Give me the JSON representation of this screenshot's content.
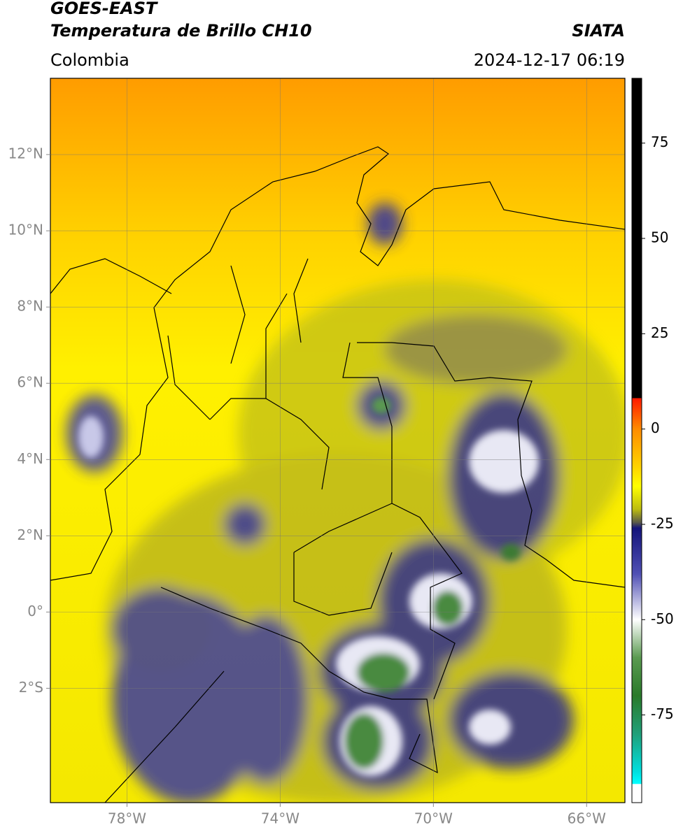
{
  "header": {
    "source": "GOES-EAST",
    "product": "Temperatura de Brillo CH10",
    "agency": "SIATA",
    "region": "Colombia",
    "datetime": "2024-12-17 06:19"
  },
  "map": {
    "xlim": [
      -80,
      -65
    ],
    "ylim": [
      -5,
      14
    ],
    "grid": true,
    "xticks": [
      {
        "value": -78,
        "label": "78°W"
      },
      {
        "value": -74,
        "label": "74°W"
      },
      {
        "value": -70,
        "label": "70°W"
      },
      {
        "value": -66,
        "label": "66°W"
      }
    ],
    "yticks": [
      {
        "value": 12,
        "label": "12°N"
      },
      {
        "value": 10,
        "label": "10°N"
      },
      {
        "value": 8,
        "label": "8°N"
      },
      {
        "value": 6,
        "label": "6°N"
      },
      {
        "value": 4,
        "label": "4°N"
      },
      {
        "value": 2,
        "label": "2°N"
      },
      {
        "value": 0,
        "label": "0°"
      },
      {
        "value": -2,
        "label": "2°S"
      }
    ]
  },
  "colorbar": {
    "lim": [
      -98,
      92
    ],
    "ticks": [
      75,
      50,
      25,
      0,
      -25,
      -50,
      -75
    ],
    "stops": [
      {
        "value": 92,
        "color": "#000000"
      },
      {
        "value": 8.2,
        "color": "#000000"
      },
      {
        "value": 8,
        "color": "#ff1a00"
      },
      {
        "value": 0,
        "color": "#ff8c00"
      },
      {
        "value": -10,
        "color": "#ffd400"
      },
      {
        "value": -15,
        "color": "#ffff00"
      },
      {
        "value": -21,
        "color": "#bdbd10"
      },
      {
        "value": -24.5,
        "color": "#5a5a4a"
      },
      {
        "value": -26,
        "color": "#14147a"
      },
      {
        "value": -38,
        "color": "#5050b4"
      },
      {
        "value": -50,
        "color": "#ffffff"
      },
      {
        "value": -60,
        "color": "#5a9a50"
      },
      {
        "value": -70,
        "color": "#2a7a2a"
      },
      {
        "value": -80,
        "color": "#20a07a"
      },
      {
        "value": -90,
        "color": "#00e0e0"
      },
      {
        "value": -93,
        "color": "#00ffff"
      },
      {
        "value": -93.2,
        "color": "#ffffff"
      },
      {
        "value": -98,
        "color": "#ffffff"
      }
    ]
  }
}
